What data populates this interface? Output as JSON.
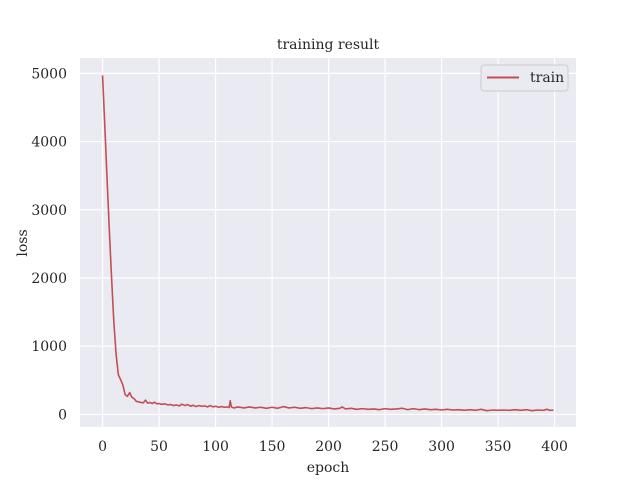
{
  "chart_data": {
    "type": "line",
    "title": "training result",
    "xlabel": "epoch",
    "ylabel": "loss",
    "xlim": [
      -19.95,
      418.95
    ],
    "ylim": [
      -184.4,
      5225.1
    ],
    "x_ticks": [
      0,
      50,
      100,
      150,
      200,
      250,
      300,
      350,
      400
    ],
    "y_ticks": [
      0,
      1000,
      2000,
      3000,
      4000,
      5000
    ],
    "grid": true,
    "legend": "top-right",
    "series": [
      {
        "name": "train",
        "color": "#c44e52",
        "points": [
          [
            0,
            4970
          ],
          [
            2,
            4230
          ],
          [
            4,
            3450
          ],
          [
            6,
            2700
          ],
          [
            8,
            2000
          ],
          [
            10,
            1350
          ],
          [
            12,
            880
          ],
          [
            14,
            580
          ],
          [
            16,
            510
          ],
          [
            18,
            430
          ],
          [
            20,
            290
          ],
          [
            22,
            265
          ],
          [
            24,
            320
          ],
          [
            26,
            250
          ],
          [
            28,
            230
          ],
          [
            30,
            190
          ],
          [
            32,
            185
          ],
          [
            34,
            175
          ],
          [
            36,
            170
          ],
          [
            38,
            210
          ],
          [
            40,
            165
          ],
          [
            42,
            175
          ],
          [
            44,
            160
          ],
          [
            46,
            180
          ],
          [
            48,
            155
          ],
          [
            50,
            160
          ],
          [
            52,
            148
          ],
          [
            55,
            155
          ],
          [
            58,
            140
          ],
          [
            60,
            145
          ],
          [
            63,
            130
          ],
          [
            65,
            140
          ],
          [
            68,
            125
          ],
          [
            70,
            150
          ],
          [
            73,
            130
          ],
          [
            75,
            145
          ],
          [
            78,
            120
          ],
          [
            80,
            135
          ],
          [
            83,
            115
          ],
          [
            85,
            130
          ],
          [
            88,
            120
          ],
          [
            90,
            125
          ],
          [
            93,
            110
          ],
          [
            95,
            130
          ],
          [
            98,
            110
          ],
          [
            100,
            120
          ],
          [
            103,
            105
          ],
          [
            105,
            115
          ],
          [
            108,
            105
          ],
          [
            110,
            110
          ],
          [
            112,
            100
          ],
          [
            113,
            200
          ],
          [
            114,
            110
          ],
          [
            116,
            95
          ],
          [
            120,
            110
          ],
          [
            125,
            95
          ],
          [
            130,
            110
          ],
          [
            135,
            95
          ],
          [
            140,
            105
          ],
          [
            145,
            90
          ],
          [
            150,
            105
          ],
          [
            155,
            90
          ],
          [
            160,
            115
          ],
          [
            165,
            95
          ],
          [
            170,
            105
          ],
          [
            175,
            90
          ],
          [
            180,
            100
          ],
          [
            185,
            85
          ],
          [
            190,
            95
          ],
          [
            195,
            85
          ],
          [
            200,
            95
          ],
          [
            205,
            80
          ],
          [
            210,
            90
          ],
          [
            212,
            110
          ],
          [
            215,
            80
          ],
          [
            220,
            90
          ],
          [
            225,
            75
          ],
          [
            230,
            85
          ],
          [
            235,
            75
          ],
          [
            240,
            80
          ],
          [
            245,
            70
          ],
          [
            250,
            85
          ],
          [
            255,
            75
          ],
          [
            260,
            80
          ],
          [
            265,
            90
          ],
          [
            270,
            70
          ],
          [
            275,
            85
          ],
          [
            280,
            70
          ],
          [
            285,
            80
          ],
          [
            290,
            70
          ],
          [
            295,
            75
          ],
          [
            300,
            65
          ],
          [
            305,
            75
          ],
          [
            310,
            65
          ],
          [
            315,
            70
          ],
          [
            320,
            60
          ],
          [
            325,
            70
          ],
          [
            330,
            60
          ],
          [
            335,
            75
          ],
          [
            340,
            55
          ],
          [
            345,
            65
          ],
          [
            350,
            60
          ],
          [
            355,
            65
          ],
          [
            360,
            60
          ],
          [
            365,
            70
          ],
          [
            370,
            60
          ],
          [
            375,
            70
          ],
          [
            380,
            55
          ],
          [
            385,
            65
          ],
          [
            390,
            60
          ],
          [
            393,
            75
          ],
          [
            396,
            60
          ],
          [
            399,
            62
          ]
        ]
      }
    ]
  }
}
